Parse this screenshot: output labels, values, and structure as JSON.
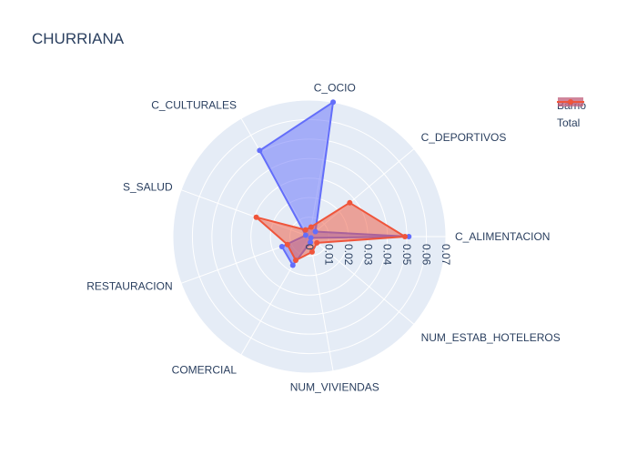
{
  "chart_data": {
    "type": "radar",
    "title": "CHURRIANA",
    "categories": [
      "C_ALIMENTACION",
      "C_DEPORTIVOS",
      "C_OCIO",
      "C_CULTURALES",
      "S_SALUD",
      "RESTAURACION",
      "COMERCIAL",
      "NUM_VIVIENDAS",
      "NUM_ESTAB_HOTELEROS"
    ],
    "radial_ticks": [
      "0",
      "0.01",
      "0.02",
      "0.03",
      "0.04",
      "0.05",
      "0.06",
      "0.07"
    ],
    "radial_range": [
      0,
      0.07
    ],
    "series": [
      {
        "name": "Barrio",
        "color": "#636efa",
        "values": [
          0.051,
          0.004,
          0.07,
          0.051,
          0.002,
          0.015,
          0.017,
          0.003,
          0.001
        ]
      },
      {
        "name": "Total",
        "color": "#ef553b",
        "values": [
          0.049,
          0.027,
          0.005,
          0.004,
          0.029,
          0.012,
          0.014,
          0.008,
          0.005
        ]
      }
    ],
    "legend_position": "top-right",
    "grid": true
  }
}
